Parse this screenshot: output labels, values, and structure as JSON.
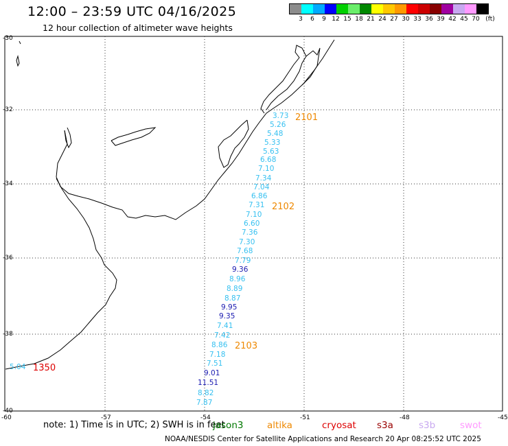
{
  "header": {
    "title": "12:00 – 23:59 UTC 04/16/2025",
    "subtitle": "12 hour collection of altimeter wave heights"
  },
  "color_scale": {
    "colors": [
      "#8c8c8c",
      "#00ffff",
      "#00aaff",
      "#0000ff",
      "#00d000",
      "#6aee6a",
      "#008800",
      "#ffff00",
      "#ffc800",
      "#ff9900",
      "#ff0000",
      "#cc0000",
      "#880000",
      "#a000a0",
      "#c8a8f0",
      "#ff99ff",
      "#000000"
    ],
    "labels": [
      "3",
      "6",
      "9",
      "12",
      "15",
      "18",
      "21",
      "24",
      "27",
      "30",
      "33",
      "36",
      "39",
      "42",
      "45",
      "70",
      "(ft)"
    ]
  },
  "axes": {
    "lat_labels": [
      "-30",
      "-32",
      "-34",
      "-36",
      "-38",
      "-40"
    ],
    "lon_labels": [
      "-60",
      "-57",
      "-54",
      "-51",
      "-48",
      "-45"
    ]
  },
  "track_points": [
    {
      "value": "3.73",
      "color": "#36c0f0"
    },
    {
      "value": "5.26",
      "color": "#36c0f0"
    },
    {
      "value": "5.48",
      "color": "#36c0f0"
    },
    {
      "value": "5.33",
      "color": "#36c0f0"
    },
    {
      "value": "5.63",
      "color": "#36c0f0"
    },
    {
      "value": "6.68",
      "color": "#36c0f0"
    },
    {
      "value": "7.10",
      "color": "#36c0f0"
    },
    {
      "value": "7.34",
      "color": "#36c0f0"
    },
    {
      "value": "7.04",
      "color": "#36c0f0"
    },
    {
      "value": "6.86",
      "color": "#36c0f0"
    },
    {
      "value": "7.31",
      "color": "#36c0f0"
    },
    {
      "value": "7.10",
      "color": "#36c0f0"
    },
    {
      "value": "6.60",
      "color": "#36c0f0"
    },
    {
      "value": "7.36",
      "color": "#36c0f0"
    },
    {
      "value": "7.30",
      "color": "#36c0f0"
    },
    {
      "value": "7.68",
      "color": "#36c0f0"
    },
    {
      "value": "7.79",
      "color": "#36c0f0"
    },
    {
      "value": "9.36",
      "color": "#1a1ab0"
    },
    {
      "value": "8.96",
      "color": "#36c0f0"
    },
    {
      "value": "8.89",
      "color": "#36c0f0"
    },
    {
      "value": "8.87",
      "color": "#36c0f0"
    },
    {
      "value": "9.95",
      "color": "#1a1ab0"
    },
    {
      "value": "9.35",
      "color": "#1a1ab0"
    },
    {
      "value": "7.41",
      "color": "#36c0f0"
    },
    {
      "value": "7.42",
      "color": "#36c0f0"
    },
    {
      "value": "8.86",
      "color": "#36c0f0"
    },
    {
      "value": "7.18",
      "color": "#36c0f0"
    },
    {
      "value": "7.51",
      "color": "#36c0f0"
    },
    {
      "value": "9.01",
      "color": "#1a1ab0"
    },
    {
      "value": "11.51",
      "color": "#1a1ab0"
    },
    {
      "value": "8.82",
      "color": "#36c0f0"
    },
    {
      "value": "7.87",
      "color": "#36c0f0"
    },
    {
      "value": "5.04",
      "color": "#36c0f0"
    }
  ],
  "pass_times": [
    {
      "label": "2101",
      "color": "#ee8800"
    },
    {
      "label": "2102",
      "color": "#ee8800"
    },
    {
      "label": "2103",
      "color": "#ee8800"
    },
    {
      "label": "1350",
      "color": "#dd0000"
    }
  ],
  "note": "note:  1) Time is in UTC; 2) SWH is in feet",
  "satellites": [
    {
      "name": "jason3",
      "color": "#007700"
    },
    {
      "name": "altika",
      "color": "#ee8800"
    },
    {
      "name": "cryosat",
      "color": "#dd0000"
    },
    {
      "name": "s3a",
      "color": "#990000"
    },
    {
      "name": "s3b",
      "color": "#c8a8f0"
    },
    {
      "name": "swot",
      "color": "#ff99ff"
    }
  ],
  "footer": "NOAA/NESDIS Center for Satellite Applications and Research    20 Apr 08:25:52 UTC 2025"
}
